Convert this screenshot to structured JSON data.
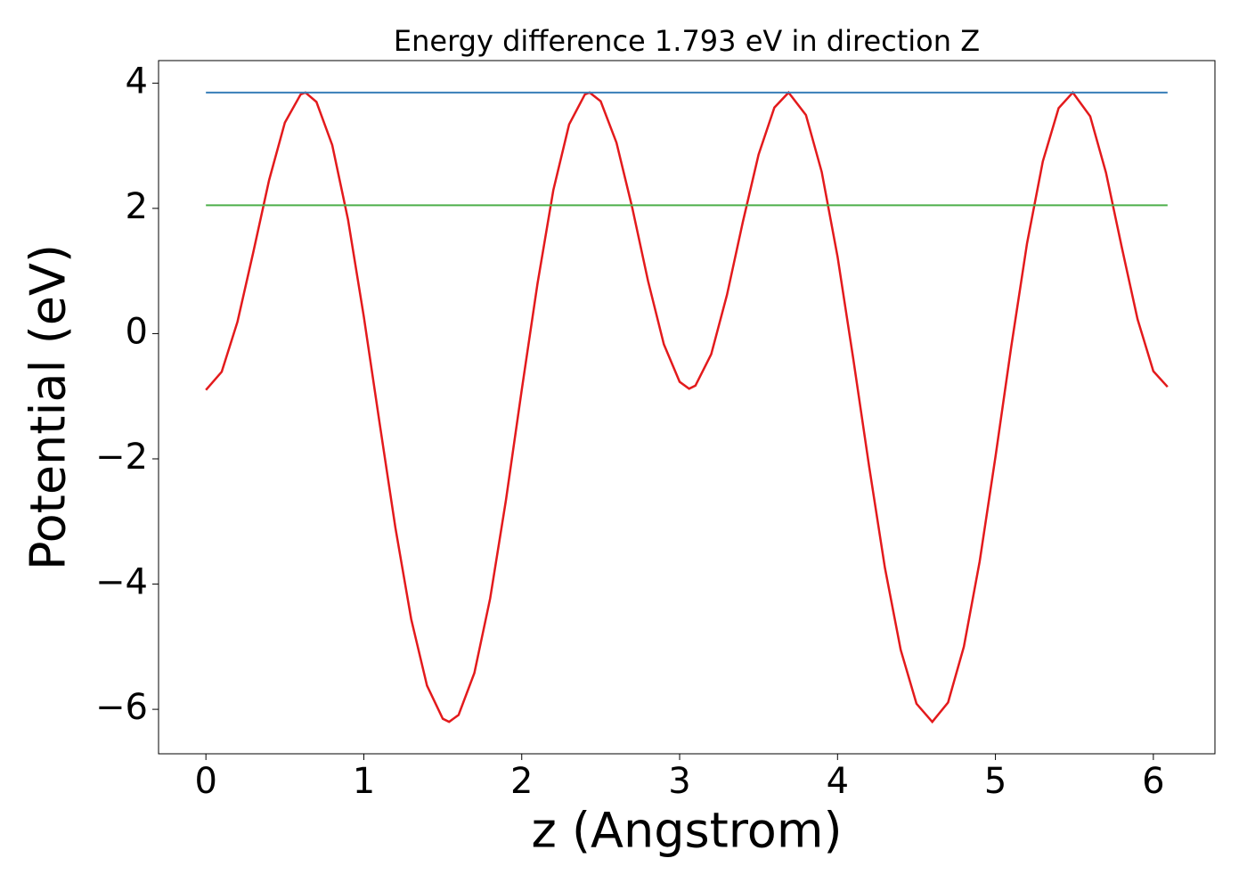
{
  "chart_data": {
    "type": "line",
    "title": "Energy difference 1.793 eV in direction Z",
    "xlabel": "z (Angstrom)",
    "ylabel": "Potential (eV)",
    "xlim": [
      -0.3,
      6.39
    ],
    "ylim": [
      -6.71,
      4.36
    ],
    "xticks": [
      0,
      1,
      2,
      3,
      4,
      5,
      6
    ],
    "yticks": [
      {
        "value": -6,
        "label": "−6"
      },
      {
        "value": -4,
        "label": "−4"
      },
      {
        "value": -2,
        "label": "−2"
      },
      0,
      2,
      4
    ],
    "series": [
      {
        "color": "#e31a1c",
        "x": [
          0,
          0.1,
          0.2,
          0.3,
          0.4,
          0.5,
          0.6,
          0.63,
          0.7,
          0.8,
          0.9,
          1.0,
          1.1,
          1.2,
          1.3,
          1.4,
          1.5,
          1.54,
          1.6,
          1.7,
          1.8,
          1.9,
          2.0,
          2.1,
          2.2,
          2.3,
          2.4,
          2.43,
          2.5,
          2.6,
          2.7,
          2.8,
          2.9,
          3.0,
          3.06,
          3.1,
          3.2,
          3.3,
          3.4,
          3.5,
          3.6,
          3.69,
          3.8,
          3.9,
          4.0,
          4.1,
          4.2,
          4.3,
          4.4,
          4.5,
          4.6,
          4.7,
          4.8,
          4.9,
          5.0,
          5.1,
          5.2,
          5.3,
          5.4,
          5.49,
          5.6,
          5.7,
          5.8,
          5.9,
          6.0,
          6.09
        ],
        "values": [
          -0.9,
          -0.61,
          0.19,
          1.3,
          2.45,
          3.37,
          3.82,
          3.85,
          3.7,
          3.01,
          1.82,
          0.27,
          -1.43,
          -3.1,
          -4.56,
          -5.62,
          -6.15,
          -6.2,
          -6.09,
          -5.42,
          -4.23,
          -2.66,
          -0.9,
          0.8,
          2.29,
          3.34,
          3.82,
          3.85,
          3.71,
          3.05,
          2.01,
          0.84,
          -0.17,
          -0.77,
          -0.88,
          -0.83,
          -0.33,
          0.62,
          1.78,
          2.86,
          3.61,
          3.85,
          3.49,
          2.58,
          1.23,
          -0.41,
          -2.12,
          -3.74,
          -5.05,
          -5.91,
          -6.2,
          -5.89,
          -5.0,
          -3.64,
          -1.97,
          -0.21,
          1.44,
          2.75,
          3.6,
          3.85,
          3.47,
          2.57,
          1.38,
          0.23,
          -0.6,
          -0.85
        ]
      },
      {
        "color": "#377eb8",
        "x": [
          0,
          6.09
        ],
        "values": [
          3.85,
          3.85
        ]
      },
      {
        "color": "#4daf4a",
        "x": [
          0,
          6.09
        ],
        "values": [
          2.05,
          2.05
        ]
      }
    ]
  }
}
